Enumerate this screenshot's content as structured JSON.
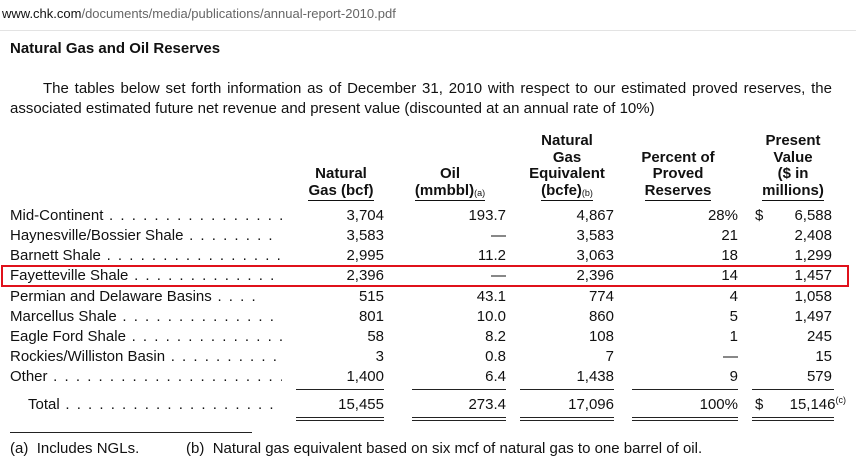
{
  "address_bar": {
    "host": "www.chk.com",
    "path": "/documents/media/publications/annual-report-2010.pdf"
  },
  "heading": "Natural Gas and Oil Reserves",
  "intro": "The tables below set forth information as of December 31, 2010 with respect to our estimated proved reserves, the associated estimated future net revenue and present value (discounted at an annual rate of 10%)",
  "columns": {
    "gas": [
      "Natural",
      "Gas (bcf)"
    ],
    "oil": [
      "Oil",
      "(mmbbl)"
    ],
    "oil_sup": "(a)",
    "eq": [
      "Natural",
      "Gas",
      "Equivalent",
      "(bcfe)"
    ],
    "eq_sup": "(b)",
    "pct": [
      "Percent of",
      "Proved",
      "Reserves"
    ],
    "pv": [
      "Present",
      "Value",
      "($ in",
      "millions)"
    ]
  },
  "rows": [
    {
      "label": "Mid-Continent",
      "leader": " . . . . . . . . . . . . . . . . . . .",
      "gas": "3,704",
      "oil": "193.7",
      "eq": "4,867",
      "pct": "28%",
      "dollar": "$",
      "pv": "6,588"
    },
    {
      "label": "Haynesville/Bossier Shale",
      "leader": " . . . . . . . .",
      "gas": "3,583",
      "oil": "—",
      "eq": "3,583",
      "pct": "21",
      "dollar": "",
      "pv": "2,408"
    },
    {
      "label": "Barnett Shale",
      "leader": " . . . . . . . . . . . . . . . . . . .",
      "gas": "2,995",
      "oil": "11.2",
      "eq": "3,063",
      "pct": "18",
      "dollar": "",
      "pv": "1,299"
    },
    {
      "label": "Fayetteville Shale",
      "leader": " . . . . . . . . . . . . . . .",
      "gas": "2,396",
      "oil": "—",
      "eq": "2,396",
      "pct": "14",
      "dollar": "",
      "pv": "1,457"
    },
    {
      "label": "Permian and Delaware Basins",
      "leader": " . . . .",
      "gas": "515",
      "oil": "43.1",
      "eq": "774",
      "pct": "4",
      "dollar": "",
      "pv": "1,058"
    },
    {
      "label": "Marcellus Shale",
      "leader": " . . . . . . . . . . . . . . . .",
      "gas": "801",
      "oil": "10.0",
      "eq": "860",
      "pct": "5",
      "dollar": "",
      "pv": "1,497"
    },
    {
      "label": "Eagle Ford Shale",
      "leader": " . . . . . . . . . . . . . . .",
      "gas": "58",
      "oil": "8.2",
      "eq": "108",
      "pct": "1",
      "dollar": "",
      "pv": "245"
    },
    {
      "label": "Rockies/Williston Basin",
      "leader": " . . . . . . . . . .",
      "gas": "3",
      "oil": "0.8",
      "eq": "7",
      "pct": "—",
      "dollar": "",
      "pv": "15"
    },
    {
      "label": "Other",
      "leader": " . . . . . . . . . . . . . . . . . . . . . . . . . .",
      "gas": "1,400",
      "oil": "6.4",
      "eq": "1,438",
      "pct": "9",
      "dollar": "",
      "pv": "579"
    }
  ],
  "total": {
    "label": "Total",
    "leader": " . . . . . . . . . . . . . . . . . . . . . .",
    "gas": "15,455",
    "oil": "273.4",
    "eq": "17,096",
    "pct": "100%",
    "dollar": "$",
    "pv": "15,146",
    "pv_sup": "(c)"
  },
  "footnotes": [
    {
      "tag": "(a)",
      "text": "Includes NGLs."
    },
    {
      "tag": "(b)",
      "text": "Natural gas equivalent based on six mcf of natural gas to one barrel of oil."
    }
  ],
  "highlight_color": "#e0111b"
}
